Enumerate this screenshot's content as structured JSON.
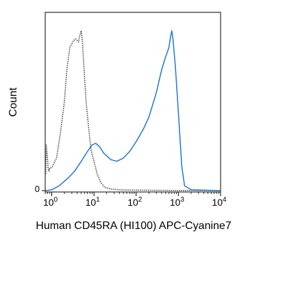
{
  "chart_data": {
    "type": "line",
    "xlabel": "Human CD45RA (HI100) APC-Cyanine7",
    "ylabel": "Count",
    "x_scale": "log",
    "xlim": [
      0.7,
      10000
    ],
    "ylim": [
      0,
      100
    ],
    "x_ticks": [
      {
        "base": "10",
        "exp": "0",
        "value": 1
      },
      {
        "base": "10",
        "exp": "1",
        "value": 10
      },
      {
        "base": "10",
        "exp": "2",
        "value": 100
      },
      {
        "base": "10",
        "exp": "3",
        "value": 1000
      },
      {
        "base": "10",
        "exp": "4",
        "value": 10000
      }
    ],
    "y_ticks": [
      {
        "label": "0",
        "value": 0
      }
    ],
    "grid": false,
    "legend": "none",
    "series": [
      {
        "style": "dotted",
        "color": "#444444",
        "x": [
          0.72,
          0.74,
          0.78,
          0.82,
          0.86,
          0.9,
          1.0,
          1.3,
          1.6,
          2.0,
          2.3,
          2.7,
          3.0,
          3.3,
          3.7,
          4.0,
          4.3,
          4.6,
          5.0,
          5.3,
          5.8,
          6.5,
          7.5,
          8.5,
          10.0,
          12.0,
          14.5,
          18.0,
          25.0,
          40.0,
          100.0,
          1000.0,
          10000.0
        ],
        "y": [
          10,
          28,
          22,
          14,
          12,
          14,
          14,
          20,
          35,
          55,
          75,
          88,
          90,
          92,
          93,
          92,
          91,
          95,
          98,
          92,
          75,
          55,
          38,
          25,
          18,
          10,
          5,
          2,
          1,
          0.5,
          0.3,
          0.1,
          0
        ]
      },
      {
        "style": "solid",
        "color": "#1f77d4",
        "x": [
          0.72,
          1.0,
          1.5,
          2.5,
          3.5,
          5.0,
          7.0,
          9.0,
          11.0,
          13.5,
          17.0,
          25.0,
          35.0,
          50.0,
          70.0,
          100.0,
          150.0,
          200.0,
          300.0,
          400.0,
          500.0,
          550.0,
          600.0,
          650.0,
          700.0,
          750.0,
          850.0,
          1000.0,
          1200.0,
          1400.0,
          2000.0,
          10000.0
        ],
        "y": [
          0,
          0.5,
          3,
          8,
          12,
          18,
          24,
          28,
          29,
          27,
          23,
          19,
          18,
          20,
          24,
          30,
          38,
          45,
          60,
          74,
          82,
          85,
          88,
          94,
          98,
          92,
          76,
          48,
          15,
          3,
          0.5,
          0
        ]
      }
    ]
  }
}
